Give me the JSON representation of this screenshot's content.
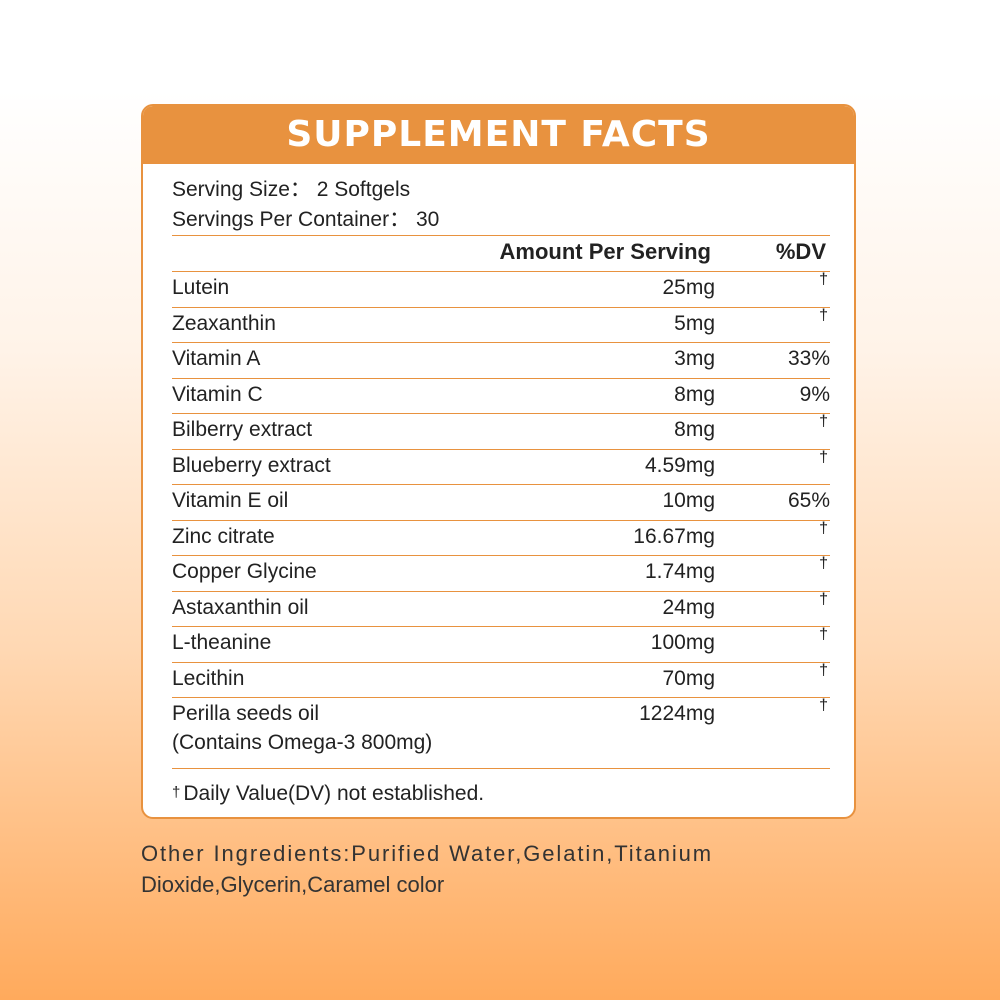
{
  "panel": {
    "title": "SUPPLEMENT FACTS",
    "serving_size": "Serving Size： 2 Softgels",
    "servings_per_container": "Servings Per Container： 30",
    "col_amount": "Amount Per Serving",
    "col_dv": "%DV",
    "dagger": "†",
    "rows": [
      {
        "name": "Lutein",
        "amount": "25mg",
        "dv": ""
      },
      {
        "name": "Zeaxanthin",
        "amount": "5mg",
        "dv": ""
      },
      {
        "name": "Vitamin A",
        "amount": "3mg",
        "dv": "33%"
      },
      {
        "name": "Vitamin C",
        "amount": "8mg",
        "dv": "9%"
      },
      {
        "name": "Bilberry extract",
        "amount": "8mg",
        "dv": ""
      },
      {
        "name": "Blueberry extract",
        "amount": "4.59mg",
        "dv": ""
      },
      {
        "name": "Vitamin E oil",
        "amount": "10mg",
        "dv": "65%"
      },
      {
        "name": "Zinc citrate",
        "amount": "16.67mg",
        "dv": ""
      },
      {
        "name": "Copper Glycine",
        "amount": "1.74mg",
        "dv": ""
      },
      {
        "name": "Astaxanthin oil",
        "amount": "24mg",
        "dv": ""
      },
      {
        "name": "L-theanine",
        "amount": "100mg",
        "dv": ""
      },
      {
        "name": "Lecithin",
        "amount": "70mg",
        "dv": ""
      },
      {
        "name": "Perilla seeds oil",
        "name_line2": "(Contains Omega-3 800mg)",
        "amount": "1224mg",
        "dv": ""
      }
    ],
    "footnote": "Daily Value(DV) not established."
  },
  "other_ingredients": {
    "line1": "Other Ingredients:Purified Water,Gelatin,Titanium",
    "line2": "Dioxide,Glycerin,Caramel color"
  },
  "colors": {
    "accent": "#e8923f",
    "text": "#222222"
  }
}
